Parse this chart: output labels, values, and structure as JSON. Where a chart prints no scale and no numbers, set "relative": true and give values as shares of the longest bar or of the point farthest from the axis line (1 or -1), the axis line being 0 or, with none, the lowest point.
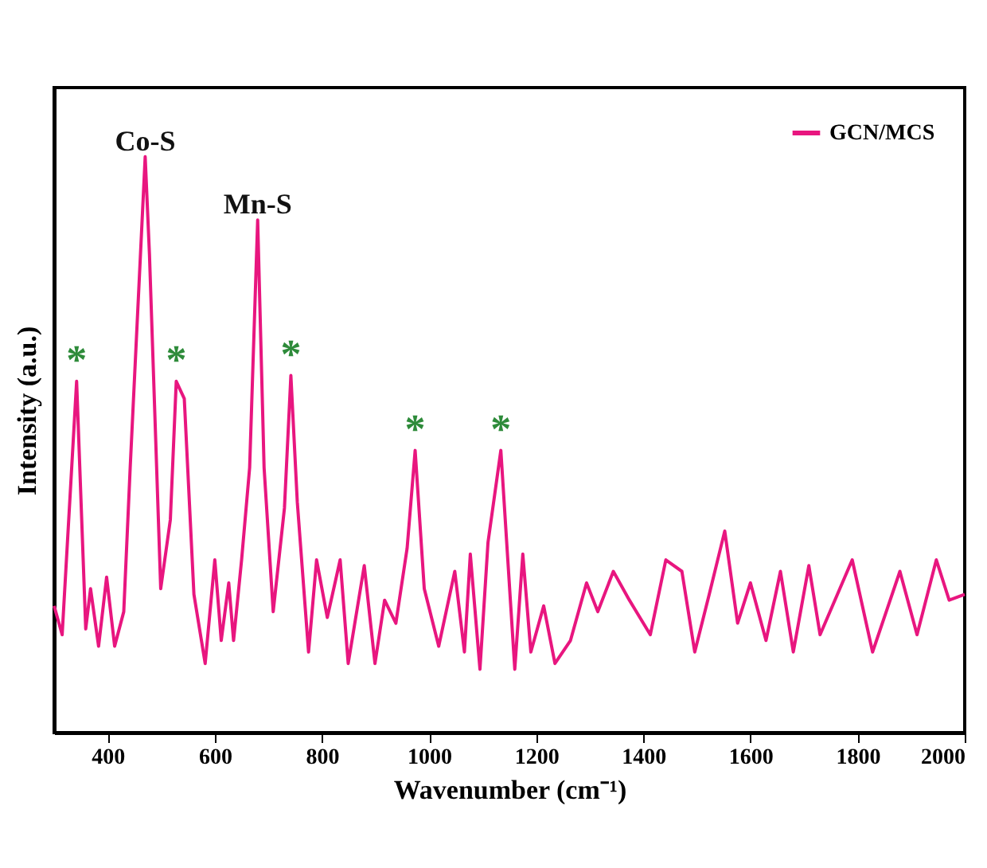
{
  "chart_data": {
    "type": "line",
    "relative": true,
    "xlabel": "Wavenumber (cm⁻¹)",
    "ylabel": "Intensity (a.u.)",
    "x": [
      300,
      315,
      342,
      359,
      368,
      383,
      398,
      413,
      430,
      442,
      470,
      478,
      499,
      517,
      528,
      543,
      561,
      582,
      600,
      612,
      626,
      635,
      650,
      665,
      680,
      692,
      709,
      730,
      742,
      754,
      775,
      790,
      810,
      834,
      849,
      879,
      899,
      917,
      938,
      959,
      974,
      991,
      1018,
      1048,
      1066,
      1077,
      1095,
      1110,
      1134,
      1160,
      1175,
      1190,
      1214,
      1235,
      1264,
      1294,
      1315,
      1344,
      1374,
      1413,
      1442,
      1472,
      1496,
      1523,
      1552,
      1576,
      1600,
      1629,
      1656,
      1680,
      1709,
      1730,
      1790,
      1828,
      1879,
      1911,
      1947,
      1971,
      2000
    ],
    "series": [
      {
        "name": "GCN/MCS",
        "color": "#e8167f",
        "values": [
          0.22,
          0.17,
          0.61,
          0.18,
          0.25,
          0.15,
          0.27,
          0.15,
          0.21,
          0.46,
          1,
          0.83,
          0.25,
          0.37,
          0.61,
          0.58,
          0.24,
          0.12,
          0.3,
          0.16,
          0.26,
          0.16,
          0.3,
          0.46,
          0.89,
          0.46,
          0.21,
          0.39,
          0.62,
          0.4,
          0.14,
          0.3,
          0.2,
          0.3,
          0.12,
          0.29,
          0.12,
          0.23,
          0.19,
          0.32,
          0.49,
          0.25,
          0.15,
          0.28,
          0.14,
          0.31,
          0.11,
          0.33,
          0.49,
          0.11,
          0.31,
          0.14,
          0.22,
          0.12,
          0.16,
          0.26,
          0.21,
          0.28,
          0.23,
          0.17,
          0.3,
          0.28,
          0.14,
          0.24,
          0.35,
          0.19,
          0.26,
          0.16,
          0.28,
          0.14,
          0.29,
          0.17,
          0.3,
          0.14,
          0.28,
          0.17,
          0.3,
          0.23,
          0.24
        ]
      }
    ],
    "annotations": [
      {
        "text": "Co-S",
        "x": 470,
        "y": 1
      },
      {
        "text": "Mn-S",
        "x": 680,
        "y": 0.89
      },
      {
        "text": "*",
        "x": 342,
        "y": 0.61
      },
      {
        "text": "*",
        "x": 528,
        "y": 0.61
      },
      {
        "text": "*",
        "x": 742,
        "y": 0.62
      },
      {
        "text": "*",
        "x": 974,
        "y": 0.49
      },
      {
        "text": "*",
        "x": 1134,
        "y": 0.49
      }
    ],
    "xlim": [
      300,
      2000
    ],
    "xticks": [
      400,
      600,
      800,
      1000,
      1200,
      1400,
      1600,
      1800,
      2000
    ],
    "legend": "top right",
    "marker": "none",
    "line_style": "solid"
  }
}
